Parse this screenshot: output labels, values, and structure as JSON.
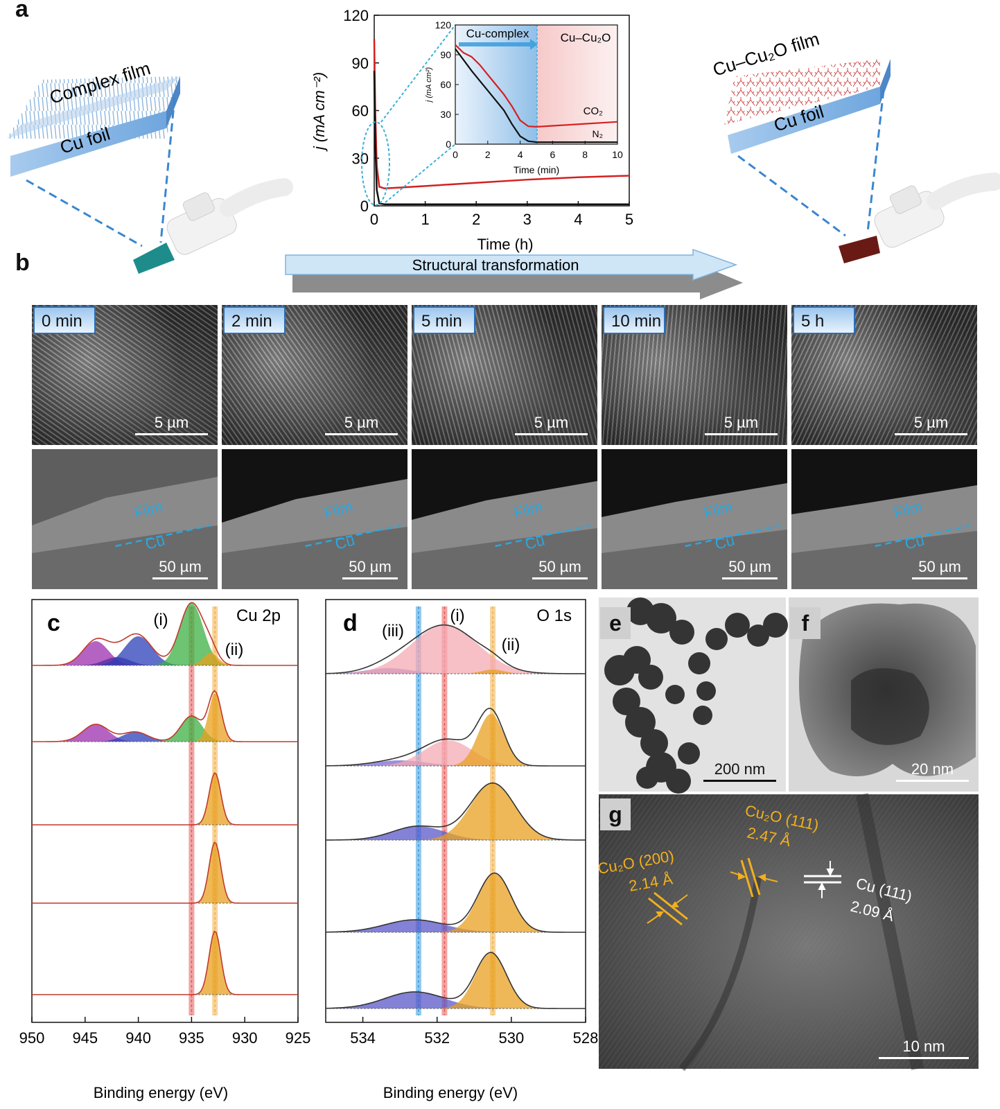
{
  "panel_labels": {
    "a": "a",
    "b": "b",
    "c": "c",
    "d": "d",
    "e": "e",
    "f": "f",
    "g": "g"
  },
  "panel_a": {
    "left_film_label": "Complex film",
    "left_foil_label": "Cu foil",
    "right_film_label": "Cu–Cu₂O film",
    "right_foil_label": "Cu foil",
    "transformation_label": "Structural transformation"
  },
  "chart_data": [
    {
      "id": "main_current",
      "type": "line",
      "xlabel": "Time (h)",
      "ylabel": "j (mA cm⁻²)",
      "xlim": [
        0,
        5
      ],
      "ylim": [
        0,
        120
      ],
      "x_ticks": [
        "0",
        "1",
        "2",
        "3",
        "4",
        "5"
      ],
      "y_ticks": [
        "0",
        "30",
        "60",
        "90",
        "120"
      ],
      "series": [
        {
          "color": "#d42020",
          "x": [
            0,
            0.02,
            0.05,
            0.1,
            0.2,
            0.5,
            1,
            2,
            3,
            4,
            5
          ],
          "y": [
            105,
            60,
            25,
            12,
            11,
            11.5,
            12.5,
            14.5,
            16.5,
            18,
            19
          ]
        },
        {
          "color": "#111111",
          "x": [
            0,
            0.02,
            0.05,
            0.1,
            0.2,
            0.5,
            1,
            2,
            3,
            4,
            5
          ],
          "y": [
            85,
            40,
            10,
            1.5,
            1,
            1,
            1,
            1,
            1,
            1,
            1
          ]
        }
      ]
    },
    {
      "id": "inset_current",
      "type": "line",
      "xlabel": "Time (min)",
      "ylabel": "j (mA cm²)",
      "xlim": [
        0,
        10
      ],
      "ylim": [
        0,
        120
      ],
      "x_ticks": [
        "0",
        "2",
        "4",
        "6",
        "8",
        "10"
      ],
      "y_ticks": [
        "0",
        "30",
        "60",
        "90",
        "120"
      ],
      "region_labels": [
        "Cu-complex",
        "Cu–Cu₂O"
      ],
      "series": [
        {
          "name": "CO₂",
          "color": "#d42020",
          "x": [
            0,
            0.5,
            1,
            1.5,
            2,
            2.5,
            3,
            3.5,
            4,
            4.5,
            5,
            6,
            7,
            8,
            9,
            10
          ],
          "y": [
            100,
            92,
            88,
            80,
            70,
            60,
            50,
            38,
            24,
            18,
            17.5,
            18.5,
            19.5,
            20.5,
            21.5,
            22.5
          ]
        },
        {
          "name": "N₂",
          "color": "#111111",
          "x": [
            0,
            0.5,
            1,
            1.5,
            2,
            2.5,
            3,
            3.5,
            4,
            4.5,
            5,
            6,
            7,
            8,
            9,
            10
          ],
          "y": [
            96,
            85,
            74,
            64,
            54,
            44,
            34,
            20,
            8,
            3,
            2,
            2,
            2,
            2,
            2,
            2
          ]
        }
      ]
    },
    {
      "id": "xps_cu2p",
      "type": "line",
      "title": "Cu 2p",
      "xlabel": "Binding energy (eV)",
      "xlim": [
        950,
        925
      ],
      "x_ticks": [
        "950",
        "945",
        "940",
        "935",
        "930",
        "925"
      ],
      "markers": [
        {
          "label": "(i)",
          "x": 935
        },
        {
          "label": "(ii)",
          "x": 932.8
        }
      ],
      "spectra_count": 5
    },
    {
      "id": "xps_o1s",
      "type": "line",
      "title": "O 1s",
      "xlabel": "Binding energy (eV)",
      "xlim": [
        535,
        528
      ],
      "x_ticks": [
        "534",
        "532",
        "530",
        "528"
      ],
      "markers": [
        {
          "label": "(iii)",
          "x": 532.5
        },
        {
          "label": "(i)",
          "x": 531.8
        },
        {
          "label": "(ii)",
          "x": 530.5
        }
      ],
      "spectra_count": 5
    }
  ],
  "panel_b": {
    "times": [
      "0 min",
      "2 min",
      "5 min",
      "10 min",
      "5 h"
    ],
    "top_scale": "5 µm",
    "bottom_scale": "50 µm",
    "film_label": "Film",
    "cu_label": "Cu"
  },
  "panel_e": {
    "scale": "200 nm"
  },
  "panel_f": {
    "scale": "20 nm"
  },
  "panel_g": {
    "scale": "10 nm",
    "fringe1_name": "Cu₂O (200)",
    "fringe1_d": "2.14 Å",
    "fringe2_name": "Cu₂O (111)",
    "fringe2_d": "2.47 Å",
    "fringe3_name": "Cu (111)",
    "fringe3_d": "2.09 Å"
  },
  "colors": {
    "accent_blue": "#3a9bdc",
    "red": "#d42020",
    "orange": "#e8a020",
    "green": "#3cb043",
    "purple": "#9b2fae",
    "navy": "#2b3fb8"
  }
}
